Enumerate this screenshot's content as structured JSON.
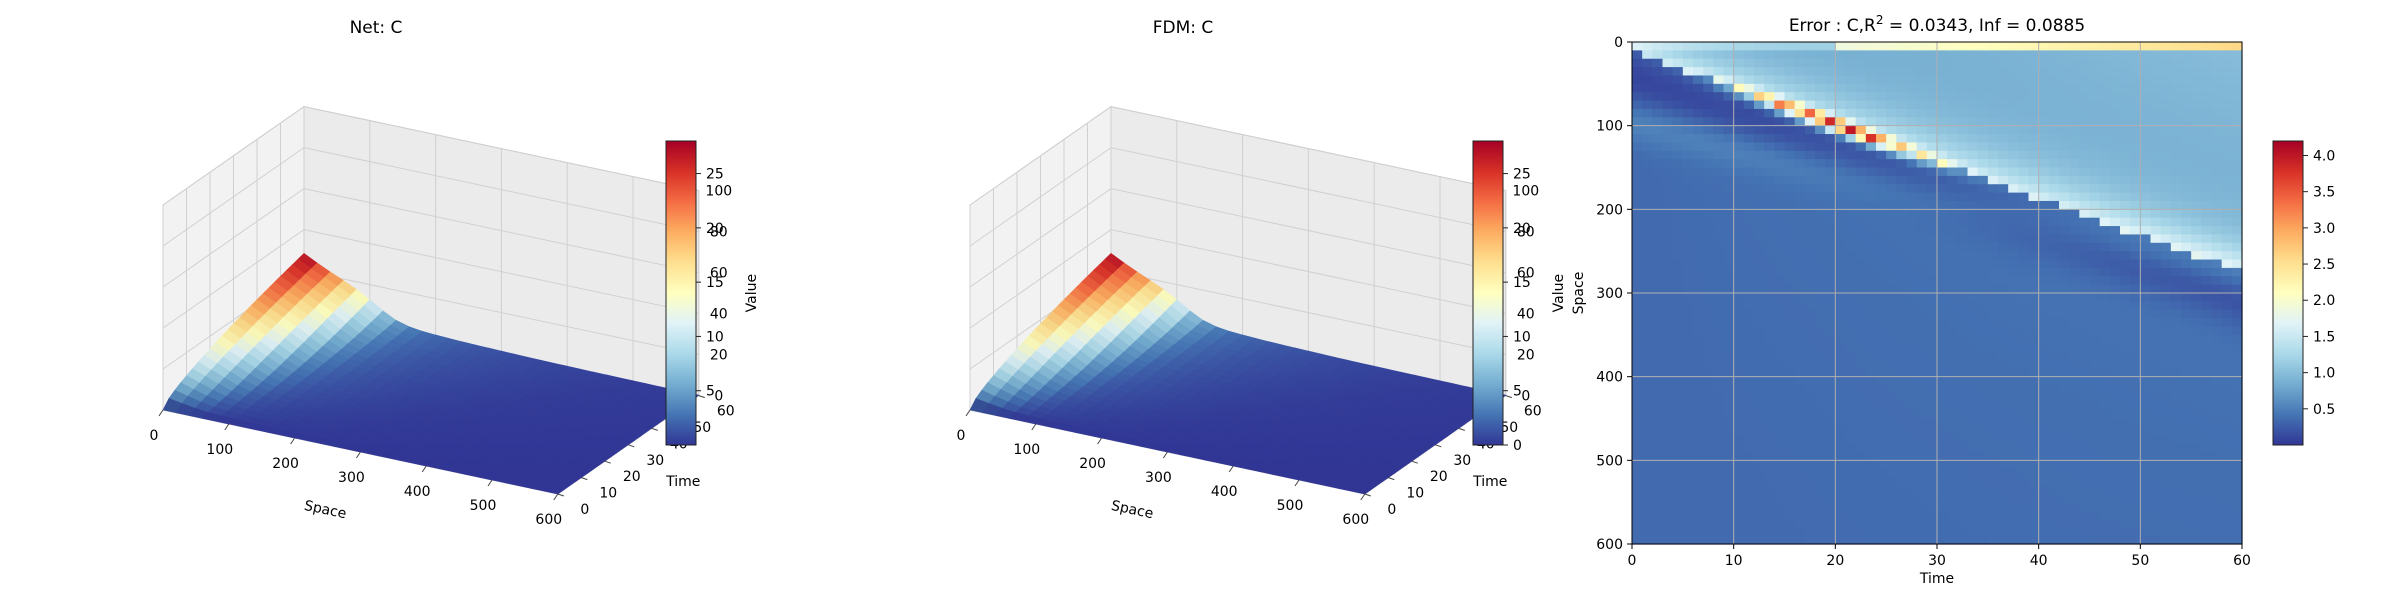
{
  "chart_data": [
    {
      "type": "surface3d",
      "title": "Net: C",
      "xlabel": "Space",
      "ylabel": "Time",
      "zlabel": "Value",
      "x_ticks": [
        "0",
        "100",
        "200",
        "300",
        "400",
        "500",
        "600"
      ],
      "y_ticks": [
        "0",
        "10",
        "20",
        "30",
        "40",
        "50",
        "60"
      ],
      "z_ticks": [
        "0",
        "20",
        "40",
        "60",
        "80",
        "100"
      ],
      "xlim": [
        0,
        600
      ],
      "ylim": [
        0,
        60
      ],
      "zlim": [
        0,
        100
      ],
      "colormap": "RdYlBu_r",
      "colorbar": {
        "min": 0,
        "max": 28,
        "ticks": [
          "5",
          "10",
          "15",
          "20",
          "25"
        ]
      },
      "peak": {
        "space": 0,
        "time": 60,
        "value": 28
      }
    },
    {
      "type": "surface3d",
      "title": "FDM: C",
      "xlabel": "Space",
      "ylabel": "Time",
      "zlabel": "Value",
      "x_ticks": [
        "0",
        "100",
        "200",
        "300",
        "400",
        "500",
        "600"
      ],
      "y_ticks": [
        "0",
        "10",
        "20",
        "30",
        "40",
        "50",
        "60"
      ],
      "z_ticks": [
        "0",
        "20",
        "40",
        "60",
        "80",
        "100"
      ],
      "xlim": [
        0,
        600
      ],
      "ylim": [
        0,
        60
      ],
      "zlim": [
        0,
        100
      ],
      "colormap": "RdYlBu_r",
      "colorbar": {
        "min": 0,
        "max": 28,
        "ticks": [
          "0",
          "5",
          "10",
          "15",
          "20",
          "25"
        ]
      },
      "peak": {
        "space": 0,
        "time": 60,
        "value": 28
      }
    },
    {
      "type": "heatmap",
      "title": "Error : C,R² = 0.0343, Inf = 0.0885",
      "xlabel": "Time",
      "ylabel": "Space",
      "x_ticks": [
        "0",
        "10",
        "20",
        "30",
        "40",
        "50",
        "60"
      ],
      "y_ticks": [
        "0",
        "100",
        "200",
        "300",
        "400",
        "500",
        "600"
      ],
      "xlim": [
        0,
        60
      ],
      "ylim": [
        600,
        0
      ],
      "grid": true,
      "colormap": "RdYlBu_r",
      "colorbar": {
        "min": 0,
        "max": 4.2,
        "ticks": [
          "0.5",
          "1.0",
          "1.5",
          "2.0",
          "2.5",
          "3.0",
          "3.5",
          "4.0"
        ]
      },
      "max_error": {
        "time": 20,
        "space": 0,
        "value": 4.2
      }
    }
  ]
}
